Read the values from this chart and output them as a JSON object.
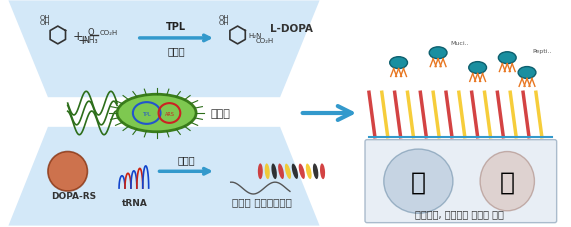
{
  "title": "",
  "background_color": "#ffffff",
  "top_left_bg": "#d6eaf8",
  "bottom_left_bg": "#d6eaf8",
  "arrow_color": "#3399cc",
  "top_label_tpl": "TPL",
  "top_label_synth": "생합성",
  "top_label_ldopa": "L-DOPA",
  "mid_label_bacteria": "대장균",
  "bottom_label_synth": "생합성",
  "bottom_label_dopa_rs": "DOPA-RS",
  "bottom_label_trna": "tRNA",
  "bottom_label_peptide": "접착성 항균펜타이드",
  "right_bottom_label": "의료기기, 임플란트 제품에 적용",
  "fig_width": 5.71,
  "fig_height": 2.28,
  "dpi": 100
}
